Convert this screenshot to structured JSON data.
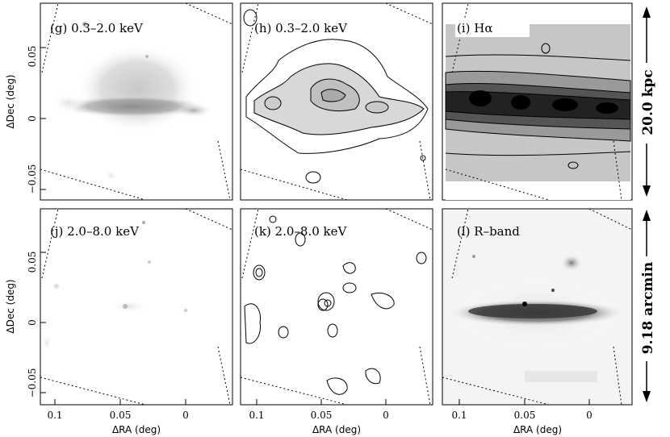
{
  "panels": [
    {
      "id": "g",
      "label": "(g) 0.3–2.0 keV"
    },
    {
      "id": "h",
      "label": "(h) 0.3–2.0 keV"
    },
    {
      "id": "i",
      "label": "(i) Hα"
    },
    {
      "id": "j",
      "label": "(j) 2.0–8.0 keV"
    },
    {
      "id": "k",
      "label": "(k) 2.0–8.0 keV"
    },
    {
      "id": "l",
      "label": "(l) R–band"
    }
  ],
  "axes": {
    "y_label": "ΔDec (deg)",
    "x_label": "ΔRA (deg)",
    "y_ticks": [
      "0.05",
      "0",
      "−0.05"
    ],
    "x_ticks": [
      "0.1",
      "0.05",
      "0"
    ]
  },
  "scale_bars": {
    "top": "20.0 kpc",
    "bottom": "9.18 arcmin"
  }
}
